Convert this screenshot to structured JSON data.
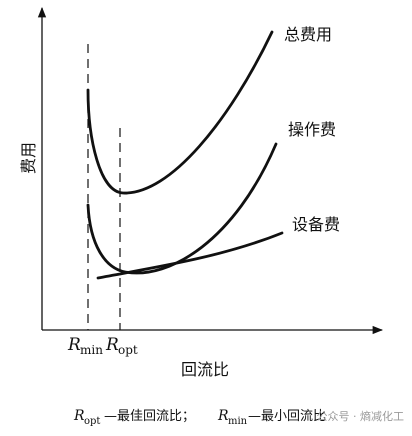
{
  "diagram": {
    "y_axis_label": "费用",
    "x_axis_label": "回流比",
    "curves": {
      "total": "总费用",
      "operating": "操作费",
      "equipment": "设备费"
    },
    "x_markers": {
      "rmin": {
        "symbol": "R",
        "sub": "min"
      },
      "ropt": {
        "symbol": "R",
        "sub": "opt"
      }
    },
    "caption": {
      "ropt_symbol": "R",
      "ropt_sub": "opt",
      "ropt_desc": "—最佳回流比；",
      "rmin_symbol": "R",
      "rmin_sub": "min",
      "rmin_desc": "—最小回流比"
    }
  },
  "watermark": "公众号 · 熵减化工"
}
